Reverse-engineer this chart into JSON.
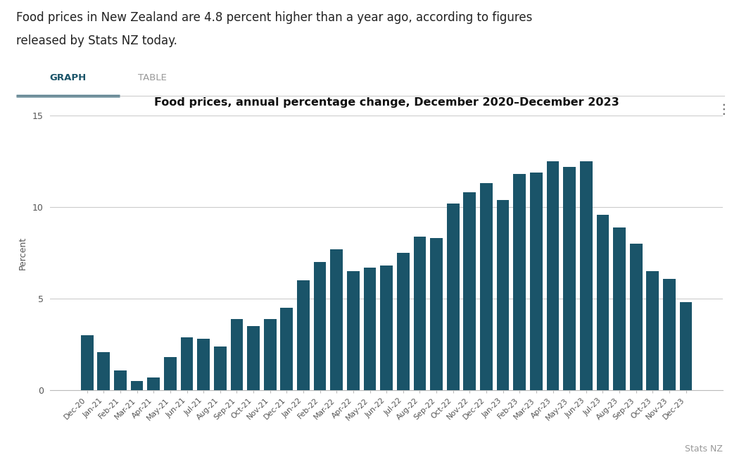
{
  "title": "Food prices, annual percentage change, December 2020–December 2023",
  "subtitle_line1": "Food prices in New Zealand are 4.8 percent higher than a year ago, according to figures",
  "subtitle_line2": "released by Stats NZ today.",
  "ylabel": "Percent",
  "bar_color": "#1a5469",
  "background_color": "#ffffff",
  "watermark": "Stats NZ",
  "categories": [
    "Dec-20",
    "Jan-21",
    "Feb-21",
    "Mar-21",
    "Apr-21",
    "May-21",
    "Jun-21",
    "Jul-21",
    "Aug-21",
    "Sep-21",
    "Oct-21",
    "Nov-21",
    "Dec-21",
    "Jan-22",
    "Feb-22",
    "Mar-22",
    "Apr-22",
    "May-22",
    "Jun-22",
    "Jul-22",
    "Aug-22",
    "Sep-22",
    "Oct-22",
    "Nov-22",
    "Dec-22",
    "Jan-23",
    "Feb-23",
    "Mar-23",
    "Apr-23",
    "May-23",
    "Jun-23",
    "Jul-23",
    "Aug-23",
    "Sep-23",
    "Oct-23",
    "Nov-23",
    "Dec-23"
  ],
  "values": [
    3.0,
    2.1,
    1.1,
    0.5,
    0.7,
    1.8,
    2.9,
    2.8,
    2.4,
    3.9,
    3.5,
    3.9,
    4.5,
    6.0,
    7.0,
    7.7,
    6.5,
    6.7,
    6.8,
    7.5,
    8.4,
    8.3,
    10.2,
    10.8,
    11.3,
    10.4,
    11.8,
    11.9,
    12.5,
    12.2,
    12.5,
    9.6,
    8.9,
    8.0,
    6.5,
    6.1,
    4.8
  ],
  "ylim": [
    0,
    15
  ],
  "yticks": [
    0,
    5,
    10,
    15
  ],
  "grid_color": "#cccccc",
  "tab_graph_label": "GRAPH",
  "tab_table_label": "TABLE",
  "tab_bg_color": "#e8eef3",
  "tab_underline_color": "#1a5469",
  "tab_separator_color": "#cccccc"
}
